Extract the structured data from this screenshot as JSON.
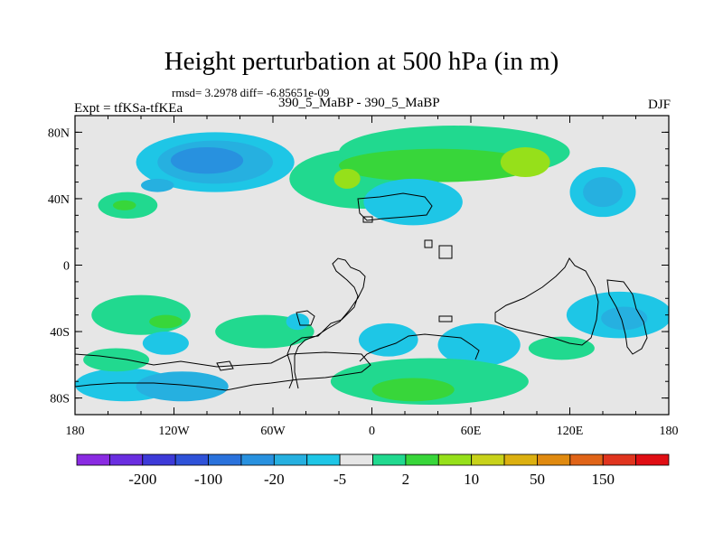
{
  "chart_data": {
    "type": "heatmap",
    "title": "Height perturbation at 500 hPa (in m)",
    "stats_text": "rmsd= 3.2978 diff= -6.85651e-09",
    "left_label": "Expt = tfKSa-tfKEa",
    "center_label": "390_5_MaBP - 390_5_MaBP",
    "right_label": "DJF",
    "projection": "cylindrical equidistant",
    "xlim": [
      -180,
      180
    ],
    "ylim": [
      -90,
      90
    ],
    "x_ticks": [
      {
        "value": -180,
        "label": "180"
      },
      {
        "value": -120,
        "label": "120W"
      },
      {
        "value": -60,
        "label": "60W"
      },
      {
        "value": 0,
        "label": "0"
      },
      {
        "value": 60,
        "label": "60E"
      },
      {
        "value": 120,
        "label": "120E"
      },
      {
        "value": 180,
        "label": "180"
      }
    ],
    "y_ticks": [
      {
        "value": 80,
        "label": "80N"
      },
      {
        "value": 40,
        "label": "40N"
      },
      {
        "value": 0,
        "label": "0"
      },
      {
        "value": -40,
        "label": "40S"
      },
      {
        "value": -80,
        "label": "80S"
      }
    ],
    "colorbar": {
      "colors": [
        "#8a2be2",
        "#6a2ee0",
        "#3d3ad8",
        "#2f52d8",
        "#2a72dc",
        "#2891df",
        "#26b0e0",
        "#1ec6e6",
        "#e6e6e6",
        "#21d98f",
        "#38d63a",
        "#96e01a",
        "#c8d21a",
        "#dcb010",
        "#e08a10",
        "#e06418",
        "#e0341e",
        "#e00e14"
      ],
      "labels": [
        {
          "after_index": 1,
          "text": "-200"
        },
        {
          "after_index": 3,
          "text": "-100"
        },
        {
          "after_index": 5,
          "text": "-20"
        },
        {
          "after_index": 7,
          "text": "-5"
        },
        {
          "after_index": 9,
          "text": "2"
        },
        {
          "after_index": 11,
          "text": "10"
        },
        {
          "after_index": 13,
          "text": "50"
        },
        {
          "after_index": 15,
          "text": "150"
        }
      ]
    },
    "background_level_color": "#e6e6e6",
    "anomalies": [
      {
        "lon": -95,
        "lat": 62,
        "rx": 48,
        "ry": 18,
        "color": "#1ec6e6"
      },
      {
        "lon": -95,
        "lat": 62,
        "rx": 35,
        "ry": 13,
        "color": "#26b0e0"
      },
      {
        "lon": -100,
        "lat": 63,
        "rx": 22,
        "ry": 8,
        "color": "#2891df"
      },
      {
        "lon": -130,
        "lat": 48,
        "rx": 10,
        "ry": 4,
        "color": "#26b0e0"
      },
      {
        "lon": -148,
        "lat": 36,
        "rx": 18,
        "ry": 8,
        "color": "#21d98f"
      },
      {
        "lon": -150,
        "lat": 36,
        "rx": 7,
        "ry": 3,
        "color": "#38d63a"
      },
      {
        "lon": -5,
        "lat": 52,
        "rx": 45,
        "ry": 18,
        "color": "#21d98f"
      },
      {
        "lon": 50,
        "lat": 68,
        "rx": 70,
        "ry": 16,
        "color": "#21d98f"
      },
      {
        "lon": 40,
        "lat": 60,
        "rx": 60,
        "ry": 10,
        "color": "#38d63a"
      },
      {
        "lon": -15,
        "lat": 52,
        "rx": 8,
        "ry": 6,
        "color": "#96e01a"
      },
      {
        "lon": 93,
        "lat": 62,
        "rx": 15,
        "ry": 9,
        "color": "#96e01a"
      },
      {
        "lon": 140,
        "lat": 44,
        "rx": 20,
        "ry": 15,
        "color": "#1ec6e6"
      },
      {
        "lon": 140,
        "lat": 44,
        "rx": 12,
        "ry": 9,
        "color": "#26b0e0"
      },
      {
        "lon": 25,
        "lat": 38,
        "rx": 30,
        "ry": 14,
        "color": "#1ec6e6"
      },
      {
        "lon": -140,
        "lat": -30,
        "rx": 30,
        "ry": 12,
        "color": "#21d98f"
      },
      {
        "lon": -125,
        "lat": -34,
        "rx": 10,
        "ry": 4,
        "color": "#38d63a"
      },
      {
        "lon": -65,
        "lat": -40,
        "rx": 30,
        "ry": 10,
        "color": "#21d98f"
      },
      {
        "lon": -125,
        "lat": -47,
        "rx": 14,
        "ry": 7,
        "color": "#1ec6e6"
      },
      {
        "lon": -45,
        "lat": -34,
        "rx": 7,
        "ry": 5,
        "color": "#1ec6e6"
      },
      {
        "lon": 10,
        "lat": -45,
        "rx": 18,
        "ry": 10,
        "color": "#1ec6e6"
      },
      {
        "lon": 65,
        "lat": -48,
        "rx": 25,
        "ry": 13,
        "color": "#1ec6e6"
      },
      {
        "lon": 150,
        "lat": -30,
        "rx": 32,
        "ry": 14,
        "color": "#1ec6e6"
      },
      {
        "lon": 153,
        "lat": -32,
        "rx": 14,
        "ry": 7,
        "color": "#26b0e0"
      },
      {
        "lon": 115,
        "lat": -50,
        "rx": 20,
        "ry": 7,
        "color": "#21d98f"
      },
      {
        "lon": -150,
        "lat": -72,
        "rx": 30,
        "ry": 10,
        "color": "#1ec6e6"
      },
      {
        "lon": -115,
        "lat": -73,
        "rx": 28,
        "ry": 9,
        "color": "#26b0e0"
      },
      {
        "lon": -155,
        "lat": -57,
        "rx": 20,
        "ry": 7,
        "color": "#21d98f"
      },
      {
        "lon": 35,
        "lat": -70,
        "rx": 60,
        "ry": 14,
        "color": "#21d98f"
      },
      {
        "lon": 25,
        "lat": -75,
        "rx": 25,
        "ry": 7,
        "color": "#38d63a"
      }
    ]
  }
}
